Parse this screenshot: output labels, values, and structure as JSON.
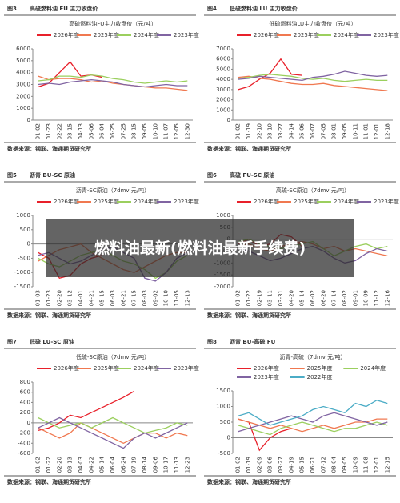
{
  "overlay_title": "燃料油最新(燃料油最新手续费)",
  "chart_data": [
    {
      "type": "line",
      "figure_label": "图3",
      "caption": "高硫燃料油 FU 主力收盘价",
      "title": "高硫燃料油FU主力收盘价（元/吨）",
      "source": "数据来源：钢联、海通期货研究所",
      "categories": [
        "01-02",
        "01-23",
        "02-22",
        "03-15",
        "04-13",
        "05-06",
        "06-04",
        "06-25",
        "07-25",
        "08-15",
        "09-05",
        "10-10",
        "11-07",
        "12-05",
        "12-30"
      ],
      "ylim": [
        0,
        6000
      ],
      "yticks": [
        0,
        1000,
        2000,
        3000,
        4000,
        5000,
        6000
      ],
      "grid": false,
      "series": [
        {
          "name": "2026年度",
          "color": "#e8202a",
          "values": [
            2800,
            3100,
            4000,
            4900,
            3700,
            3800,
            3600,
            null,
            null,
            null,
            null,
            null,
            null,
            null,
            null
          ]
        },
        {
          "name": "2025年度",
          "color": "#f07850",
          "values": [
            3700,
            3400,
            3500,
            3500,
            3400,
            3200,
            3300,
            3100,
            3000,
            2900,
            2800,
            2700,
            2700,
            2600,
            2500
          ]
        },
        {
          "name": "2024年度",
          "color": "#9bcf5e",
          "values": [
            3300,
            3400,
            3700,
            3700,
            3600,
            3800,
            3700,
            3500,
            3400,
            3200,
            3100,
            3200,
            3300,
            3200,
            3300
          ]
        },
        {
          "name": "2023年度",
          "color": "#8064a2",
          "values": [
            3000,
            3100,
            3000,
            3200,
            3300,
            3400,
            3300,
            3200,
            3000,
            2900,
            2800,
            2900,
            3000,
            2900,
            2900
          ]
        }
      ]
    },
    {
      "type": "line",
      "figure_label": "图4",
      "caption": "低硫燃料油 LU 主力收盘价",
      "title": "低硫燃料油LU主力收盘价（元/吨）",
      "source": "数据来源：钢联、海通期货研究所",
      "categories": [
        "01-02",
        "01-19",
        "02-10",
        "03-10",
        "03-27",
        "04-14",
        "05-06",
        "06-07",
        "07-05",
        "08-01",
        "09-05",
        "10-11",
        "11-01",
        "12-01",
        "12-18"
      ],
      "ylim": [
        0,
        7000
      ],
      "yticks": [
        0,
        1000,
        2000,
        3000,
        4000,
        5000,
        6000,
        7000
      ],
      "grid": false,
      "series": [
        {
          "name": "2026年度",
          "color": "#e8202a",
          "values": [
            3000,
            3300,
            4000,
            4600,
            6000,
            4500,
            4400,
            null,
            null,
            null,
            null,
            null,
            null,
            null,
            null
          ]
        },
        {
          "name": "2025年度",
          "color": "#f07850",
          "values": [
            4200,
            4300,
            4100,
            4000,
            3800,
            3600,
            3500,
            3500,
            3600,
            3400,
            3300,
            3200,
            3100,
            3000,
            2900
          ]
        },
        {
          "name": "2024年度",
          "color": "#9bcf5e",
          "values": [
            4100,
            4200,
            4400,
            4500,
            4400,
            4300,
            4100,
            4000,
            4100,
            3900,
            3800,
            3900,
            4000,
            3900,
            3900
          ]
        },
        {
          "name": "2023年度",
          "color": "#8064a2",
          "values": [
            4000,
            4100,
            4300,
            4200,
            4100,
            4000,
            3900,
            4200,
            4300,
            4500,
            4800,
            4600,
            4400,
            4300,
            4400
          ]
        }
      ]
    },
    {
      "type": "line",
      "figure_label": "图5",
      "caption": "沥青 BU-SC 原油",
      "title": "沥青-SC原油（7dmv 元/吨）",
      "source": "数据来源：钢联、海通期货研究所",
      "categories": [
        "01-03",
        "01-23",
        "02-20",
        "03-12",
        "04-01",
        "04-21",
        "05-15",
        "06-03",
        "06-21",
        "07-15",
        "08-03",
        "09-02",
        "10-10",
        "11-05",
        "12-13"
      ],
      "ylim": [
        -1500,
        1000
      ],
      "yticks": [
        -1500,
        -1000,
        -500,
        0,
        500,
        1000
      ],
      "grid": false,
      "series": [
        {
          "name": "2026年度",
          "color": "#e8202a",
          "values": [
            -300,
            -500,
            -1200,
            -1100,
            -700,
            -500,
            -400,
            null,
            null,
            null,
            null,
            null,
            null,
            null,
            null
          ]
        },
        {
          "name": "2025年度",
          "color": "#f07850",
          "values": [
            -600,
            -400,
            -200,
            -100,
            0,
            -300,
            -500,
            -700,
            -900,
            -1000,
            -800,
            -600,
            -400,
            -300,
            -300
          ]
        },
        {
          "name": "2024年度",
          "color": "#9bcf5e",
          "values": [
            -500,
            -700,
            -800,
            -600,
            -400,
            -300,
            -200,
            -400,
            -600,
            -700,
            -900,
            -1200,
            -1000,
            -600,
            -400
          ]
        },
        {
          "name": "2023年度",
          "color": "#8064a2",
          "values": [
            -400,
            -300,
            -500,
            -700,
            -600,
            -400,
            -200,
            -100,
            -300,
            -500,
            -1200,
            -1300,
            -1000,
            -500,
            -300
          ]
        }
      ]
    },
    {
      "type": "line",
      "figure_label": "图6",
      "caption": "高硫 FU-SC 原油",
      "title": "高硫-SC原油（7dmv 元/吨）",
      "source": "数据来源：钢联、海通期货研究所",
      "categories": [
        "01-02",
        "01-22",
        "02-19",
        "03-11",
        "03-31",
        "04-20",
        "05-14",
        "06-02",
        "06-20",
        "07-14",
        "08-02",
        "09-01",
        "10-09",
        "11-12",
        "12-16"
      ],
      "ylim": [
        -2000,
        1000
      ],
      "yticks": [
        -2000,
        -1500,
        -1000,
        -500,
        0,
        500,
        1000
      ],
      "grid": false,
      "series": [
        {
          "name": "2026年度",
          "color": "#e8202a",
          "values": [
            -200,
            0,
            -300,
            -200,
            200,
            100,
            -300,
            null,
            null,
            null,
            null,
            null,
            null,
            null,
            null
          ]
        },
        {
          "name": "2025年度",
          "color": "#f07850",
          "values": [
            -300,
            -200,
            -400,
            -500,
            -300,
            -200,
            -100,
            -200,
            -400,
            -300,
            -500,
            -400,
            -500,
            -600,
            -700
          ]
        },
        {
          "name": "2024年度",
          "color": "#9bcf5e",
          "values": [
            -100,
            0,
            -200,
            -300,
            -400,
            -300,
            -200,
            -100,
            -400,
            -700,
            -500,
            -300,
            -200,
            -400,
            -300
          ]
        },
        {
          "name": "2023年度",
          "color": "#8064a2",
          "values": [
            -400,
            -500,
            -700,
            -900,
            -800,
            -600,
            -400,
            -300,
            -500,
            -800,
            -1000,
            -900,
            -600,
            -400,
            -500
          ]
        }
      ]
    },
    {
      "type": "line",
      "figure_label": "图7",
      "caption": "低硫 LU-SC 原油",
      "title": "低硫-SC原油（7dmv 元/吨）",
      "source": "数据来源：钢联、海通期货研究所",
      "categories": [
        "01-02",
        "01-22",
        "02-20",
        "03-13",
        "04-03",
        "04-22",
        "05-14",
        "06-04",
        "06-24",
        "07-19",
        "08-14",
        "09-06",
        "10-17",
        "11-13",
        "12-23"
      ],
      "ylim": [
        -600,
        800
      ],
      "yticks": [
        -600,
        -400,
        -200,
        0,
        200,
        400,
        600,
        800
      ],
      "grid": false,
      "series": [
        {
          "name": "2026年度",
          "color": "#e8202a",
          "values": [
            -150,
            -100,
            0,
            150,
            100,
            200,
            300,
            400,
            500,
            620,
            null,
            null,
            null,
            null,
            null
          ]
        },
        {
          "name": "2025年度",
          "color": "#f07850",
          "values": [
            -100,
            -200,
            -300,
            -200,
            0,
            -100,
            -200,
            -300,
            -400,
            -300,
            -200,
            -200,
            -300,
            -200,
            -250
          ]
        },
        {
          "name": "2024年度",
          "color": "#9bcf5e",
          "values": [
            100,
            0,
            -100,
            -50,
            0,
            -100,
            0,
            100,
            0,
            -100,
            -200,
            -150,
            -100,
            0,
            -50
          ]
        },
        {
          "name": "2023年度",
          "color": "#8064a2",
          "values": [
            -100,
            0,
            100,
            0,
            -100,
            -200,
            -300,
            -400,
            -500,
            -300,
            -200,
            -300,
            -200,
            -100,
            0
          ]
        }
      ]
    },
    {
      "type": "line",
      "figure_label": "图8",
      "caption": "沥青 BU-高硫 FU",
      "title": "沥青-高硫（7dmv 元/吨）",
      "source": "数据来源：钢联、海通期货研究所",
      "categories": [
        "01-02",
        "01-19",
        "02-09",
        "03-06",
        "03-27",
        "04-19",
        "05-15",
        "06-21",
        "07-12",
        "08-04",
        "09-05",
        "10-09",
        "11-08",
        "12-01",
        "12-15"
      ],
      "ylim": [
        -500,
        1500
      ],
      "yticks": [
        -500,
        0,
        500,
        1000,
        1500
      ],
      "grid": false,
      "series": [
        {
          "name": "2026年度",
          "color": "#e8202a",
          "values": [
            600,
            500,
            -400,
            0,
            200,
            300,
            null,
            null,
            null,
            null,
            null,
            null,
            null,
            null,
            null
          ]
        },
        {
          "name": "2025年度",
          "color": "#f07850",
          "values": [
            600,
            500,
            400,
            300,
            400,
            300,
            200,
            300,
            400,
            300,
            400,
            500,
            500,
            600,
            600
          ]
        },
        {
          "name": "2024年度",
          "color": "#9bcf5e",
          "values": [
            400,
            300,
            200,
            100,
            300,
            400,
            500,
            400,
            300,
            200,
            300,
            300,
            400,
            500,
            400
          ]
        },
        {
          "name": "2023年度",
          "color": "#8064a2",
          "values": [
            200,
            300,
            400,
            500,
            600,
            700,
            600,
            500,
            700,
            800,
            700,
            600,
            500,
            400,
            500
          ]
        },
        {
          "name": "2022年度",
          "color": "#4bacc6",
          "values": [
            700,
            800,
            600,
            400,
            500,
            600,
            700,
            900,
            1000,
            900,
            800,
            1100,
            1000,
            1200,
            1100
          ]
        }
      ]
    }
  ]
}
